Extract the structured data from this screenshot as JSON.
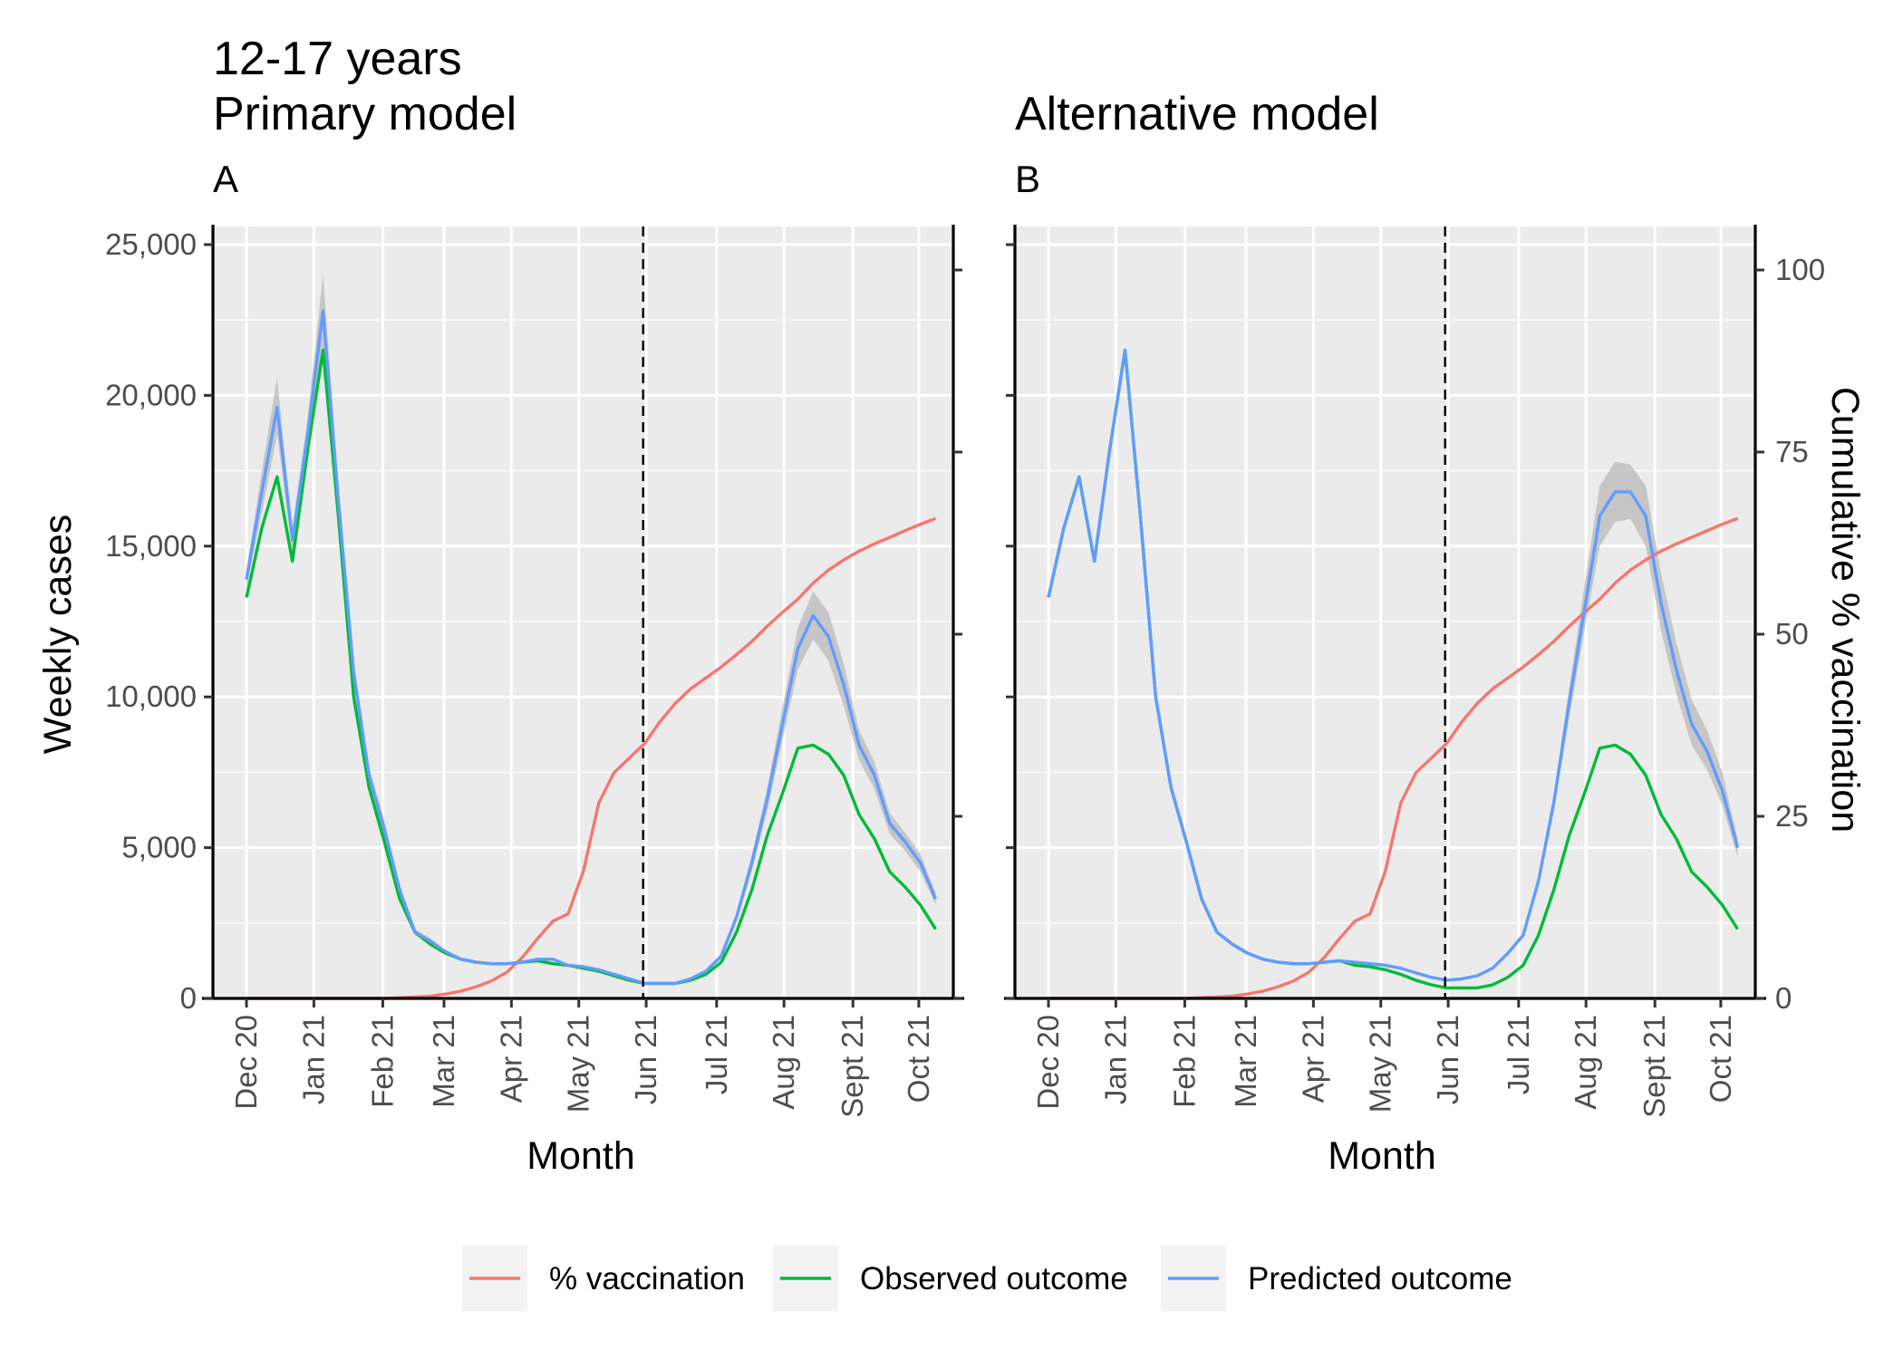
{
  "figure": {
    "title_line1": "12-17 years",
    "legend": [
      {
        "label": "% vaccination",
        "color": "#F8766D"
      },
      {
        "label": "Observed outcome",
        "color": "#00BA38"
      },
      {
        "label": "Predicted outcome",
        "color": "#619CFF"
      }
    ]
  },
  "colors": {
    "panel_background": "#EBEBEB",
    "gridline": "#FFFFFF",
    "ribbon": "#C0C0C0",
    "vaccination": "#F8766D",
    "observed": "#00BA38",
    "predicted": "#619CFF"
  },
  "chart_data": [
    {
      "type": "line",
      "title": "Primary model",
      "panel_tag": "A",
      "xlabel": "Month",
      "ylabel": "Weekly cases",
      "y2label": "",
      "x_ticks": [
        "Dec 20",
        "Jan 21",
        "Feb 21",
        "Mar 21",
        "Apr 21",
        "May 21",
        "Jun 21",
        "Jul 21",
        "Aug 21",
        "Sept 21",
        "Oct 21"
      ],
      "x_tick_weeks": [
        0,
        4.4,
        8.9,
        12.9,
        17.3,
        21.7,
        26.1,
        30.7,
        35.1,
        39.6,
        43.9
      ],
      "y_ticks": [
        0,
        5000,
        10000,
        15000,
        20000,
        25000
      ],
      "y_tick_labels": [
        "0",
        "5,000",
        "10,000",
        "15,000",
        "20,000",
        "25,000"
      ],
      "ylim": [
        -500,
        25600
      ],
      "y2_ticks": [
        0,
        25,
        50,
        75,
        100
      ],
      "y2_tick_labels": [
        "",
        "",
        "",
        "",
        ""
      ],
      "y2lim": [
        0,
        100
      ],
      "intervention_week": 25.9,
      "series": [
        {
          "name": "Observed outcome",
          "key": "observed",
          "x_weeks": [
            0,
            1,
            2,
            3,
            4,
            5,
            6,
            7,
            8,
            9,
            10,
            11,
            12,
            13,
            14,
            15,
            16,
            17,
            18,
            19,
            20,
            21,
            22,
            23,
            24,
            25,
            26,
            27,
            28,
            29,
            30,
            31,
            32,
            33,
            34,
            35,
            36,
            37,
            38,
            39,
            40,
            41,
            42,
            43,
            44,
            45
          ],
          "values": [
            13300,
            15600,
            17300,
            14500,
            18200,
            21500,
            16000,
            10000,
            7000,
            5200,
            3300,
            2200,
            1800,
            1500,
            1300,
            1200,
            1150,
            1150,
            1200,
            1250,
            1150,
            1100,
            1000,
            900,
            750,
            600,
            500,
            500,
            500,
            600,
            800,
            1200,
            2200,
            3600,
            5400,
            6800,
            8300,
            8400,
            8100,
            7400,
            6100,
            5300,
            4200,
            3700,
            3100,
            2300
          ]
        },
        {
          "name": "Predicted outcome",
          "key": "predicted",
          "x_weeks": [
            0,
            1,
            2,
            3,
            4,
            5,
            6,
            7,
            8,
            9,
            10,
            11,
            12,
            13,
            14,
            15,
            16,
            17,
            18,
            19,
            20,
            21,
            22,
            23,
            24,
            25,
            26,
            27,
            28,
            29,
            30,
            31,
            32,
            33,
            34,
            35,
            36,
            37,
            38,
            39,
            40,
            41,
            42,
            43,
            44,
            45
          ],
          "values": [
            13900,
            16800,
            19600,
            15200,
            18700,
            22800,
            16500,
            10800,
            7400,
            5600,
            3600,
            2200,
            1900,
            1550,
            1300,
            1200,
            1150,
            1150,
            1200,
            1300,
            1300,
            1100,
            1050,
            950,
            800,
            650,
            500,
            500,
            500,
            650,
            900,
            1400,
            2700,
            4500,
            6600,
            9100,
            11600,
            12700,
            12000,
            10400,
            8400,
            7400,
            5800,
            5200,
            4500,
            3300
          ]
        },
        {
          "name": "% vaccination",
          "key": "vaccination",
          "axis": "y2",
          "x_weeks": [
            0,
            1,
            2,
            3,
            4,
            5,
            6,
            7,
            8,
            9,
            10,
            11,
            12,
            13,
            14,
            15,
            16,
            17,
            18,
            19,
            20,
            21,
            22,
            23,
            24,
            25,
            26,
            27,
            28,
            29,
            30,
            31,
            32,
            33,
            34,
            35,
            36,
            37,
            38,
            39,
            40,
            41,
            42,
            43,
            44,
            45
          ],
          "values": [
            0,
            0,
            0,
            0,
            0,
            0,
            0,
            0,
            0,
            0,
            0.1,
            0.2,
            0.3,
            0.6,
            1,
            1.6,
            2.4,
            3.6,
            5.6,
            8.2,
            10.6,
            11.6,
            17.5,
            26.8,
            31,
            33,
            35,
            38,
            40.5,
            42.5,
            44,
            45.5,
            47.2,
            49,
            51.1,
            53,
            54.8,
            57,
            58.8,
            60.2,
            61.4,
            62.4,
            63.3,
            64.2,
            65.1,
            65.9
          ]
        }
      ],
      "ribbon": {
        "x_weeks": [
          0,
          1,
          2,
          3,
          4,
          5,
          6,
          7,
          8,
          9,
          10,
          11,
          12,
          13,
          14,
          15,
          16,
          17,
          18,
          19,
          20,
          21,
          22,
          23,
          24,
          25,
          26,
          27,
          28,
          29,
          30,
          31,
          32,
          33,
          34,
          35,
          36,
          37,
          38,
          39,
          40,
          41,
          42,
          43,
          44,
          45
        ],
        "lower": [
          13600,
          16100,
          18700,
          14800,
          18100,
          21600,
          15900,
          10400,
          7100,
          5300,
          3400,
          2100,
          1800,
          1500,
          1250,
          1150,
          1100,
          1100,
          1150,
          1250,
          1250,
          1050,
          1000,
          900,
          760,
          610,
          470,
          470,
          470,
          610,
          840,
          1320,
          2540,
          4230,
          6200,
          8550,
          10900,
          11900,
          11200,
          9700,
          7900,
          6950,
          5450,
          4900,
          4200,
          3100
        ],
        "upper": [
          14200,
          17500,
          20600,
          15600,
          19300,
          24000,
          17100,
          11200,
          7700,
          5900,
          3800,
          2300,
          2000,
          1600,
          1350,
          1250,
          1200,
          1200,
          1250,
          1350,
          1350,
          1150,
          1100,
          1000,
          840,
          690,
          530,
          530,
          530,
          690,
          960,
          1480,
          2860,
          4770,
          7000,
          9650,
          12300,
          13500,
          12800,
          11100,
          8900,
          7850,
          6150,
          5500,
          4800,
          3500
        ]
      }
    },
    {
      "type": "line",
      "title": "Alternative model",
      "panel_tag": "B",
      "xlabel": "Month",
      "ylabel": "",
      "y2label": "Cumulative % vaccination",
      "x_ticks": [
        "Dec 20",
        "Jan 21",
        "Feb 21",
        "Mar 21",
        "Apr 21",
        "May 21",
        "Jun 21",
        "Jul 21",
        "Aug 21",
        "Sept 21",
        "Oct 21"
      ],
      "x_tick_weeks": [
        0,
        4.4,
        8.9,
        12.9,
        17.3,
        21.7,
        26.1,
        30.7,
        35.1,
        39.6,
        43.9
      ],
      "y_ticks": [
        0,
        5000,
        10000,
        15000,
        20000,
        25000
      ],
      "y_tick_labels": [
        "",
        "",
        "",
        "",
        "",
        ""
      ],
      "ylim": [
        -500,
        25600
      ],
      "y2_ticks": [
        0,
        25,
        50,
        75,
        100
      ],
      "y2_tick_labels": [
        "0",
        "25",
        "50",
        "75",
        "100"
      ],
      "y2lim": [
        0,
        100
      ],
      "intervention_week": 25.9,
      "series": [
        {
          "name": "Observed outcome",
          "key": "observed",
          "x_weeks": [
            0,
            1,
            2,
            3,
            4,
            5,
            6,
            7,
            8,
            9,
            10,
            11,
            12,
            13,
            14,
            15,
            16,
            17,
            18,
            19,
            20,
            21,
            22,
            23,
            24,
            25,
            26,
            27,
            28,
            29,
            30,
            31,
            32,
            33,
            34,
            35,
            36,
            37,
            38,
            39,
            40,
            41,
            42,
            43,
            44,
            45
          ],
          "values": [
            13300,
            15600,
            17300,
            14500,
            18200,
            21500,
            16000,
            10000,
            7000,
            5200,
            3300,
            2200,
            1800,
            1500,
            1300,
            1200,
            1150,
            1150,
            1200,
            1250,
            1100,
            1050,
            950,
            800,
            600,
            450,
            350,
            350,
            350,
            450,
            700,
            1100,
            2100,
            3600,
            5400,
            6800,
            8300,
            8400,
            8100,
            7400,
            6100,
            5300,
            4200,
            3700,
            3100,
            2300
          ]
        },
        {
          "name": "Predicted outcome",
          "key": "predicted",
          "x_weeks": [
            0,
            1,
            2,
            3,
            4,
            5,
            6,
            7,
            8,
            9,
            10,
            11,
            12,
            13,
            14,
            15,
            16,
            17,
            18,
            19,
            20,
            21,
            22,
            23,
            24,
            25,
            26,
            27,
            28,
            29,
            30,
            31,
            32,
            33,
            34,
            35,
            36,
            37,
            38,
            39,
            40,
            41,
            42,
            43,
            44,
            45
          ],
          "values": [
            13300,
            15600,
            17300,
            14500,
            18200,
            21500,
            16000,
            10000,
            7000,
            5200,
            3300,
            2200,
            1800,
            1500,
            1300,
            1200,
            1150,
            1150,
            1200,
            1250,
            1200,
            1150,
            1100,
            1000,
            850,
            700,
            600,
            650,
            750,
            1000,
            1500,
            2100,
            3900,
            6500,
            9800,
            12900,
            16000,
            16800,
            16800,
            16000,
            13100,
            10900,
            9100,
            8200,
            6900,
            5000
          ]
        },
        {
          "name": "% vaccination",
          "key": "vaccination",
          "axis": "y2",
          "x_weeks": [
            0,
            1,
            2,
            3,
            4,
            5,
            6,
            7,
            8,
            9,
            10,
            11,
            12,
            13,
            14,
            15,
            16,
            17,
            18,
            19,
            20,
            21,
            22,
            23,
            24,
            25,
            26,
            27,
            28,
            29,
            30,
            31,
            32,
            33,
            34,
            35,
            36,
            37,
            38,
            39,
            40,
            41,
            42,
            43,
            44,
            45
          ],
          "values": [
            0,
            0,
            0,
            0,
            0,
            0,
            0,
            0,
            0,
            0,
            0.1,
            0.2,
            0.3,
            0.6,
            1,
            1.6,
            2.4,
            3.6,
            5.6,
            8.2,
            10.6,
            11.6,
            17.5,
            26.8,
            31,
            33,
            35,
            38,
            40.5,
            42.5,
            44,
            45.5,
            47.2,
            49,
            51.1,
            53,
            54.8,
            57,
            58.8,
            60.2,
            61.4,
            62.4,
            63.3,
            64.2,
            65.1,
            65.9
          ]
        }
      ],
      "ribbon": {
        "x_weeks": [
          0,
          1,
          2,
          3,
          4,
          5,
          6,
          7,
          8,
          9,
          10,
          11,
          12,
          13,
          14,
          15,
          16,
          17,
          18,
          19,
          20,
          21,
          22,
          23,
          24,
          25,
          26,
          27,
          28,
          29,
          30,
          31,
          32,
          33,
          34,
          35,
          36,
          37,
          38,
          39,
          40,
          41,
          42,
          43,
          44,
          45
        ],
        "lower": [
          13300,
          15600,
          17300,
          14500,
          18200,
          21500,
          16000,
          10000,
          7000,
          5200,
          3300,
          2200,
          1800,
          1500,
          1300,
          1200,
          1150,
          1150,
          1200,
          1250,
          1180,
          1130,
          1080,
          980,
          830,
          680,
          580,
          630,
          720,
          960,
          1440,
          2020,
          3700,
          6200,
          9300,
          12200,
          15000,
          15800,
          15900,
          15000,
          12200,
          10100,
          8400,
          7600,
          6400,
          4700
        ],
        "upper": [
          13300,
          15600,
          17300,
          14500,
          18200,
          21500,
          16000,
          10000,
          7000,
          5200,
          3300,
          2200,
          1800,
          1500,
          1300,
          1200,
          1150,
          1150,
          1200,
          1250,
          1220,
          1170,
          1120,
          1020,
          870,
          720,
          620,
          670,
          780,
          1040,
          1560,
          2180,
          4100,
          6800,
          10300,
          13700,
          17000,
          17800,
          17700,
          17000,
          14100,
          11800,
          9900,
          8900,
          7500,
          5300
        ]
      }
    }
  ]
}
